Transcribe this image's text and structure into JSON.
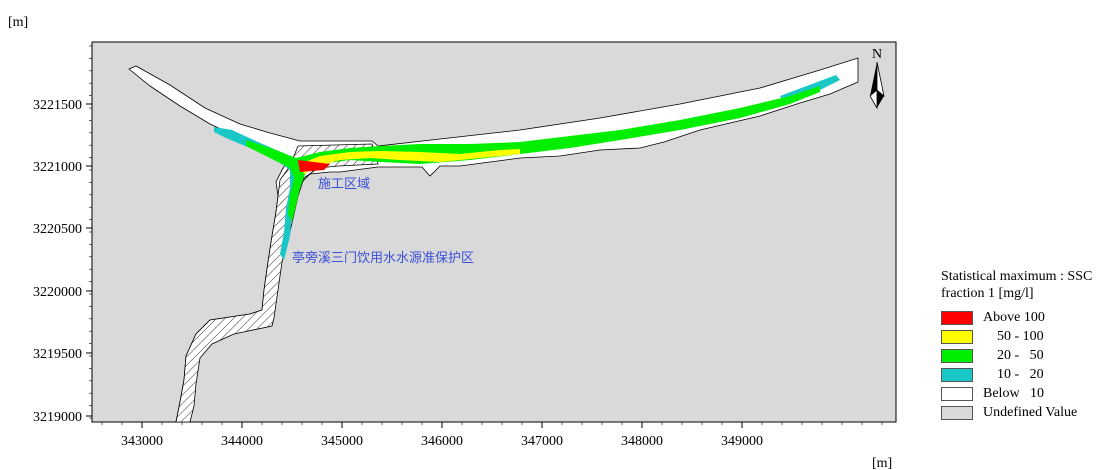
{
  "map": {
    "unit_y": "[m]",
    "unit_x": "[m]",
    "north_label": "N",
    "y_ticks": [
      "3221500",
      "3221000",
      "3220500",
      "3220000",
      "3219500",
      "3219000"
    ],
    "x_ticks": [
      "343000",
      "344000",
      "345000",
      "346000",
      "347000",
      "348000",
      "349000"
    ],
    "labels": {
      "construction_area": "施工区域",
      "protection_zone": "亭旁溪三门饮用水水源准保护区"
    },
    "colors": {
      "background": "#d9d9d9",
      "river": "#ffffff",
      "above_100": "#ff0000",
      "range_50_100": "#ffff00",
      "range_20_50": "#00ee00",
      "range_10_20": "#19c7c7",
      "label": "#3a4fd8"
    }
  },
  "legend": {
    "title_line1": "Statistical maximum : SSC",
    "title_line2": "fraction 1 [mg/l]",
    "items": [
      {
        "label": "Above 100",
        "color": "#ff0000"
      },
      {
        "label": "    50 - 100",
        "color": "#ffff00"
      },
      {
        "label": "    20 -   50",
        "color": "#00ee00"
      },
      {
        "label": "    10 -   20",
        "color": "#19c7c7"
      },
      {
        "label": "Below   10",
        "color": "#ffffff"
      },
      {
        "label": "Undefined Value",
        "color": "#d9d9d9"
      }
    ]
  }
}
